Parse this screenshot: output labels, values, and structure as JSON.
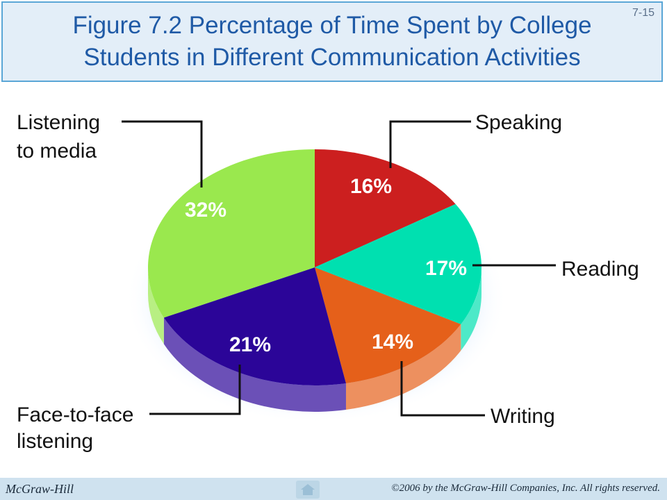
{
  "slide": {
    "number": "7-15",
    "title_line1": "Figure 7.2 Percentage of Time Spent by College",
    "title_line2": "Students in Different Communication Activities"
  },
  "footer": {
    "publisher": "McGraw-Hill",
    "copyright": "©2006 by the McGraw-Hill Companies, Inc. All rights reserved.",
    "home_icon": "home-icon"
  },
  "chart_data": {
    "type": "pie",
    "style": "3d",
    "slices": [
      {
        "label": "Speaking",
        "value": 16,
        "value_label": "16%",
        "color": "#cc1f1f"
      },
      {
        "label": "Reading",
        "value": 17,
        "value_label": "17%",
        "color": "#00e0b0"
      },
      {
        "label": "Writing",
        "value": 14,
        "value_label": "14%",
        "color": "#e5601a"
      },
      {
        "label": "Face-to-face listening",
        "value": 21,
        "value_label": "21%",
        "color": "#2b0598"
      },
      {
        "label": "Listening to media",
        "value": 32,
        "value_label": "32%",
        "color": "#9ae84e"
      }
    ]
  }
}
